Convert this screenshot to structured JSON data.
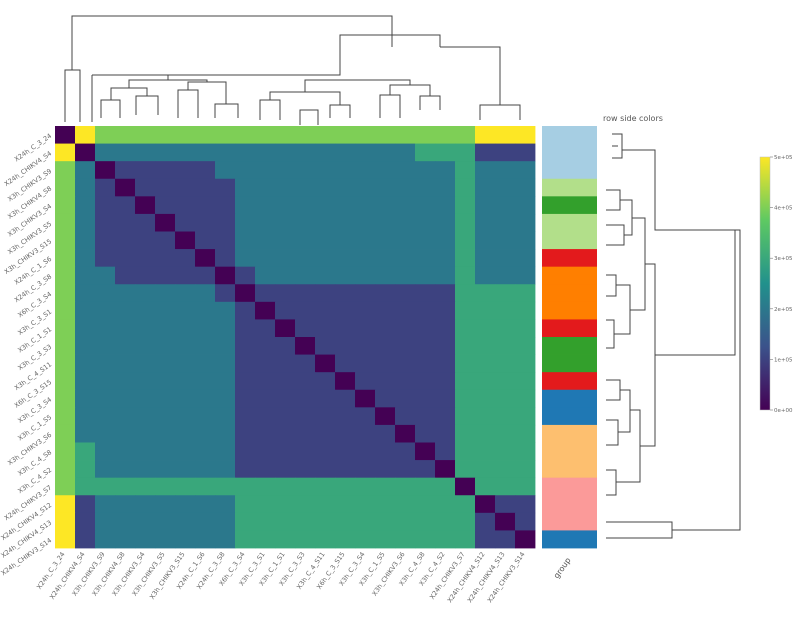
{
  "chart_data": {
    "type": "heatmap",
    "title": "",
    "xlabel": "",
    "ylabel": "",
    "labels": [
      "X24h_C_3_24",
      "X24h_CHIKV4_S4",
      "X3h_CHIKV3_S9",
      "X3h_CHIKV4_S8",
      "X3h_CHIKV3_S4",
      "X3h_CHIKV3_S5",
      "X3h_CHIKV3_S15",
      "X24h_C_1_S6",
      "X24h_C_3_S8",
      "X6h_C_3_S4",
      "X3h_C_3_S1",
      "X3h_C_1_S1",
      "X3h_C_3_S3",
      "X3h_C_4_S11",
      "X6h_C_3_S15",
      "X3h_C_3_S4",
      "X3h_C_1_S5",
      "X3h_CHIKV3_S6",
      "X3h_C_4_S8",
      "X3h_C_4_S2",
      "X24h_CHIKV3_S7",
      "X24h_CHIKV4_S12",
      "X24h_CHIKV4_S13",
      "X24h_CHIKV3_S14"
    ],
    "values": [
      [
        0,
        6,
        4,
        4,
        4,
        4,
        4,
        4,
        4,
        4,
        4,
        4,
        4,
        4,
        4,
        4,
        4,
        4,
        4,
        4,
        4,
        5,
        5,
        5
      ],
      [
        6,
        0,
        2,
        2,
        2,
        2,
        2,
        2,
        2,
        2,
        2,
        2,
        2,
        2,
        2,
        2,
        2,
        2,
        3,
        3,
        3,
        1,
        1,
        1
      ],
      [
        4,
        2,
        0,
        1,
        1,
        1,
        1,
        1,
        2,
        2,
        2,
        2,
        2,
        2,
        2,
        2,
        2,
        2,
        2,
        2,
        3,
        2,
        2,
        2
      ],
      [
        4,
        2,
        1,
        0,
        1,
        1,
        1,
        1,
        1,
        2,
        2,
        2,
        2,
        2,
        2,
        2,
        2,
        2,
        2,
        2,
        3,
        2,
        2,
        2
      ],
      [
        4,
        2,
        1,
        1,
        0,
        1,
        1,
        1,
        1,
        2,
        2,
        2,
        2,
        2,
        2,
        2,
        2,
        2,
        2,
        2,
        3,
        2,
        2,
        2
      ],
      [
        4,
        2,
        1,
        1,
        1,
        0,
        1,
        1,
        1,
        2,
        2,
        2,
        2,
        2,
        2,
        2,
        2,
        2,
        2,
        2,
        3,
        2,
        2,
        2
      ],
      [
        4,
        2,
        1,
        1,
        1,
        1,
        0,
        1,
        1,
        2,
        2,
        2,
        2,
        2,
        2,
        2,
        2,
        2,
        2,
        2,
        3,
        2,
        2,
        2
      ],
      [
        4,
        2,
        1,
        1,
        1,
        1,
        1,
        0,
        1,
        2,
        2,
        2,
        2,
        2,
        2,
        2,
        2,
        2,
        2,
        2,
        3,
        2,
        2,
        2
      ],
      [
        4,
        2,
        2,
        1,
        1,
        1,
        1,
        1,
        0,
        1,
        2,
        2,
        2,
        2,
        2,
        2,
        2,
        2,
        2,
        2,
        3,
        2,
        2,
        2
      ],
      [
        4,
        2,
        2,
        2,
        2,
        2,
        2,
        2,
        1,
        0,
        1,
        1,
        1,
        1,
        1,
        1,
        1,
        1,
        1,
        1,
        3,
        3,
        3,
        3
      ],
      [
        4,
        2,
        2,
        2,
        2,
        2,
        2,
        2,
        2,
        1,
        0,
        1,
        1,
        1,
        1,
        1,
        1,
        1,
        1,
        1,
        3,
        3,
        3,
        3
      ],
      [
        4,
        2,
        2,
        2,
        2,
        2,
        2,
        2,
        2,
        1,
        1,
        0,
        1,
        1,
        1,
        1,
        1,
        1,
        1,
        1,
        3,
        3,
        3,
        3
      ],
      [
        4,
        2,
        2,
        2,
        2,
        2,
        2,
        2,
        2,
        1,
        1,
        1,
        0,
        1,
        1,
        1,
        1,
        1,
        1,
        1,
        3,
        3,
        3,
        3
      ],
      [
        4,
        2,
        2,
        2,
        2,
        2,
        2,
        2,
        2,
        1,
        1,
        1,
        1,
        0,
        1,
        1,
        1,
        1,
        1,
        1,
        3,
        3,
        3,
        3
      ],
      [
        4,
        2,
        2,
        2,
        2,
        2,
        2,
        2,
        2,
        1,
        1,
        1,
        1,
        1,
        0,
        1,
        1,
        1,
        1,
        1,
        3,
        3,
        3,
        3
      ],
      [
        4,
        2,
        2,
        2,
        2,
        2,
        2,
        2,
        2,
        1,
        1,
        1,
        1,
        1,
        1,
        0,
        1,
        1,
        1,
        1,
        3,
        3,
        3,
        3
      ],
      [
        4,
        2,
        2,
        2,
        2,
        2,
        2,
        2,
        2,
        1,
        1,
        1,
        1,
        1,
        1,
        1,
        0,
        1,
        1,
        1,
        3,
        3,
        3,
        3
      ],
      [
        4,
        2,
        2,
        2,
        2,
        2,
        2,
        2,
        2,
        1,
        1,
        1,
        1,
        1,
        1,
        1,
        1,
        0,
        1,
        1,
        3,
        3,
        3,
        3
      ],
      [
        4,
        3,
        2,
        2,
        2,
        2,
        2,
        2,
        2,
        1,
        1,
        1,
        1,
        1,
        1,
        1,
        1,
        1,
        0,
        1,
        3,
        3,
        3,
        3
      ],
      [
        4,
        3,
        2,
        2,
        2,
        2,
        2,
        2,
        2,
        1,
        1,
        1,
        1,
        1,
        1,
        1,
        1,
        1,
        1,
        0,
        3,
        3,
        3,
        3
      ],
      [
        4,
        3,
        3,
        3,
        3,
        3,
        3,
        3,
        3,
        3,
        3,
        3,
        3,
        3,
        3,
        3,
        3,
        3,
        3,
        3,
        0,
        3,
        3,
        3
      ],
      [
        5,
        1,
        2,
        2,
        2,
        2,
        2,
        2,
        2,
        3,
        3,
        3,
        3,
        3,
        3,
        3,
        3,
        3,
        3,
        3,
        3,
        0,
        1,
        1
      ],
      [
        5,
        1,
        2,
        2,
        2,
        2,
        2,
        2,
        2,
        3,
        3,
        3,
        3,
        3,
        3,
        3,
        3,
        3,
        3,
        3,
        3,
        1,
        0,
        1
      ],
      [
        5,
        1,
        2,
        2,
        2,
        2,
        2,
        2,
        2,
        3,
        3,
        3,
        3,
        3,
        3,
        3,
        3,
        3,
        3,
        3,
        3,
        1,
        1,
        0
      ]
    ],
    "colorscale": "viridis",
    "zlim": [
      0,
      5
    ],
    "colorbar": {
      "ticks": [
        "0e+00",
        "1e+05",
        "2e+05",
        "3e+05",
        "4e+05",
        "5e+05"
      ],
      "placement": "right"
    },
    "row_side_colors": {
      "title": "row side colors",
      "axis_label": "group",
      "colors": [
        "#a6cee3",
        "#a6cee3",
        "#a6cee3",
        "#b2df8a",
        "#33a02c",
        "#b2df8a",
        "#b2df8a",
        "#e31a1c",
        "#ff7f00",
        "#ff7f00",
        "#ff7f00",
        "#e31a1c",
        "#33a02c",
        "#33a02c",
        "#e31a1c",
        "#1f78b4",
        "#1f78b4",
        "#fdbf6f",
        "#fdbf6f",
        "#fdbf6f",
        "#fb9a99",
        "#fb9a99",
        "#fb9a99",
        "#1f78b4"
      ]
    }
  }
}
